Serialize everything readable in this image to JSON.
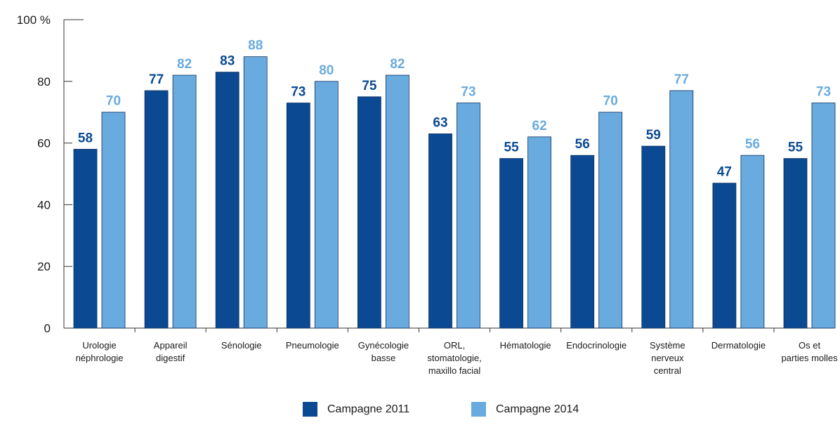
{
  "chart_data": {
    "type": "bar",
    "title": "",
    "xlabel": "",
    "ylabel": "",
    "y_axis_unit": "%",
    "ylim": [
      0,
      100
    ],
    "y_ticks": [
      0,
      20,
      40,
      60,
      80,
      100
    ],
    "y_tick_labels": [
      "0",
      "20",
      "40",
      "60",
      "80",
      "100 %"
    ],
    "categories": [
      "Urologie néphrologie",
      "Appareil digestif",
      "Sénologie",
      "Pneumologie",
      "Gynécologie basse",
      "ORL, stomatologie, maxillo facial",
      "Hématologie",
      "Endocrinologie",
      "Système nerveux central",
      "Dermatologie",
      "Os et parties molles"
    ],
    "category_label_lines": [
      [
        "Urologie",
        "néphrologie"
      ],
      [
        "Appareil",
        "digestif"
      ],
      [
        "Sénologie"
      ],
      [
        "Pneumologie"
      ],
      [
        "Gynécologie",
        "basse"
      ],
      [
        "ORL,",
        "stomatologie,",
        "maxillo facial"
      ],
      [
        "Hématologie"
      ],
      [
        "Endocrinologie"
      ],
      [
        "Système",
        "nerveux",
        "central"
      ],
      [
        "Dermatologie"
      ],
      [
        "Os et",
        "parties molles"
      ]
    ],
    "series": [
      {
        "name": "Campagne 2011",
        "color": "#0b4a93",
        "values": [
          58,
          77,
          83,
          73,
          75,
          63,
          55,
          56,
          59,
          47,
          55
        ]
      },
      {
        "name": "Campagne 2014",
        "color": "#6aabdf",
        "values": [
          70,
          82,
          88,
          80,
          82,
          73,
          62,
          70,
          77,
          56,
          73
        ]
      }
    ],
    "data_labels": true,
    "grid": false,
    "legend_position": "bottom-center"
  }
}
